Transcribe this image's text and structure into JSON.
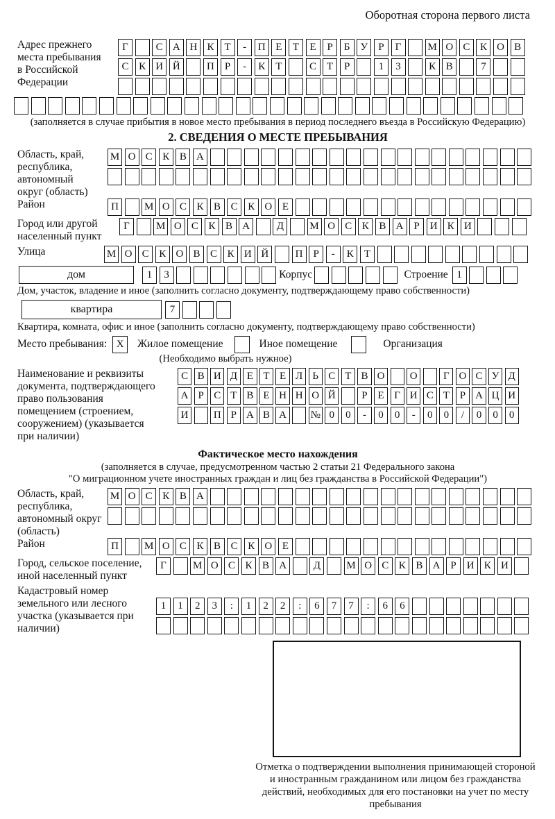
{
  "header": {
    "note": "Оборотная сторона первого листа"
  },
  "prev_address": {
    "label": "Адрес прежнего места пребывания в Российской Федерации",
    "row1": {
      "chars": "Г САНКТ-ПЕТЕРБУРГ МОСКОВ",
      "count": 24
    },
    "row2": {
      "chars": "СКИЙ ПР-КТ СТР 13 КВ 7",
      "count": 24
    },
    "row3": {
      "chars": "",
      "count": 24
    },
    "row4": {
      "chars": "",
      "count": 30
    },
    "note": "(заполняется в случае прибытия в новое место пребывания в период последнего въезда в Российскую Федерацию)"
  },
  "section2": {
    "title": "2. СВЕДЕНИЯ О МЕСТЕ ПРЕБЫВАНИЯ",
    "region": {
      "label": "Область, край, республика, автономный округ (область)",
      "row1": {
        "chars": "МОСКВА",
        "count": 25
      },
      "row2": {
        "chars": "",
        "count": 25
      }
    },
    "district": {
      "label": "Район",
      "row": {
        "chars": "П МОСКВСКОЕ",
        "count": 25
      }
    },
    "city": {
      "label": "Город или другой населенный пункт",
      "row": {
        "chars": "Г МОСКВА Д МОСКВАРИКИ",
        "count": 24
      }
    },
    "street": {
      "label": "Улица",
      "row": {
        "chars": "МОСКОВСКИЙ ПР-КТ",
        "count": 25
      }
    },
    "house": {
      "box_label": "дом",
      "cells": {
        "chars": "13",
        "count": 8
      },
      "korpus_label": "Корпус",
      "korpus_cells": {
        "chars": "",
        "count": 5
      },
      "stroenie_label": "Строение",
      "stroenie_cells": {
        "chars": "1",
        "count": 4
      },
      "note": "Дом, участок, владение и иное (заполнить согласно документу, подтверждающему право собственности)"
    },
    "apartment": {
      "box_label": "квартира",
      "cells": {
        "chars": "7",
        "count": 4
      },
      "note": "Квартира, комната, офис и иное (заполнить согласно документу, подтверждающему право собственности)"
    },
    "stay_type": {
      "label": "Место пребывания:",
      "options": [
        {
          "label": "Жилое помещение",
          "mark": "X"
        },
        {
          "label": "Иное помещение",
          "mark": ""
        },
        {
          "label": "Организация",
          "mark": ""
        }
      ],
      "note": "(Необходимо выбрать нужное)"
    },
    "document": {
      "label": "Наименование и реквизиты документа, подтверждающего право пользования помещением (строением, сооружением) (указывается при наличии)",
      "row1": {
        "chars": "СВИДЕТЕЛЬСТВО О ГОСУД",
        "count": 21
      },
      "row2": {
        "chars": "АРСТВЕННОЙ РЕГИСТРАЦИ",
        "count": 21
      },
      "row3": {
        "chars": "И ПРАВА №00-00-00/000",
        "count": 21
      }
    }
  },
  "actual_location": {
    "title": "Фактическое место нахождения",
    "note1": "(заполняется в случае, предусмотренном частью 2 статьи 21 Федерального закона",
    "note2": "\"О миграционном учете иностранных граждан и лиц без гражданства в Российской Федерации\")",
    "region": {
      "label": "Область, край, республика, автономный округ (область)",
      "row1": {
        "chars": "МОСКВА",
        "count": 25
      },
      "row2": {
        "chars": "",
        "count": 25
      }
    },
    "district": {
      "label": "Район",
      "row": {
        "chars": "П МОСКВСКОЕ",
        "count": 25
      }
    },
    "city": {
      "label": "Город, сельское поселение, иной населенный пункт",
      "row": {
        "chars": "Г МОСКВА Д МОСКВАРИКИ",
        "count": 22
      }
    },
    "cadastre": {
      "label": "Кадастровый номер земельного или лесного участка (указывается при наличии)",
      "row1": {
        "chars": "1123:122:677:66",
        "count": 22
      },
      "row2": {
        "chars": "",
        "count": 22
      }
    }
  },
  "confirmation": {
    "note": "Отметка о подтверждении выполнения принимающей стороной и иностранным гражданином или лицом без гражданства действий, необходимых для его постановки на учет по месту пребывания"
  }
}
